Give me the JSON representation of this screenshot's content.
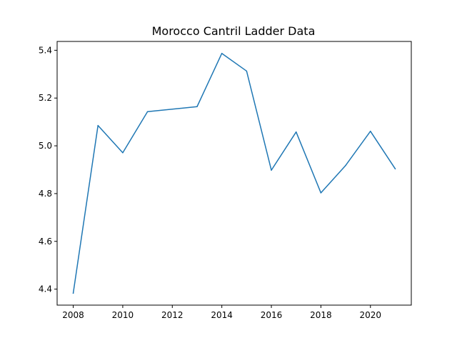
{
  "chart_data": {
    "type": "line",
    "title": "Morocco Cantril Ladder Data",
    "xlabel": "",
    "ylabel": "",
    "x": [
      2008,
      2009,
      2010,
      2011,
      2013,
      2014,
      2015,
      2016,
      2017,
      2018,
      2019,
      2020,
      2021
    ],
    "series": [
      {
        "values": [
          4.383,
          5.085,
          4.971,
          5.143,
          5.164,
          5.387,
          5.313,
          4.898,
          5.058,
          4.803,
          4.918,
          5.061,
          4.904
        ],
        "color": "#1f77b4"
      }
    ],
    "xlim": [
      2007.35,
      2021.65
    ],
    "ylim": [
      4.333,
      5.437
    ],
    "xticks": [
      2008,
      2010,
      2012,
      2014,
      2016,
      2018,
      2020
    ],
    "xtick_labels": [
      "2008",
      "2010",
      "2012",
      "2014",
      "2016",
      "2018",
      "2020"
    ],
    "yticks": [
      4.4,
      4.6,
      4.8,
      5.0,
      5.2,
      5.4
    ],
    "ytick_labels": [
      "4.4",
      "4.6",
      "4.8",
      "5.0",
      "5.2",
      "5.4"
    ],
    "grid": false,
    "legend": "none"
  }
}
